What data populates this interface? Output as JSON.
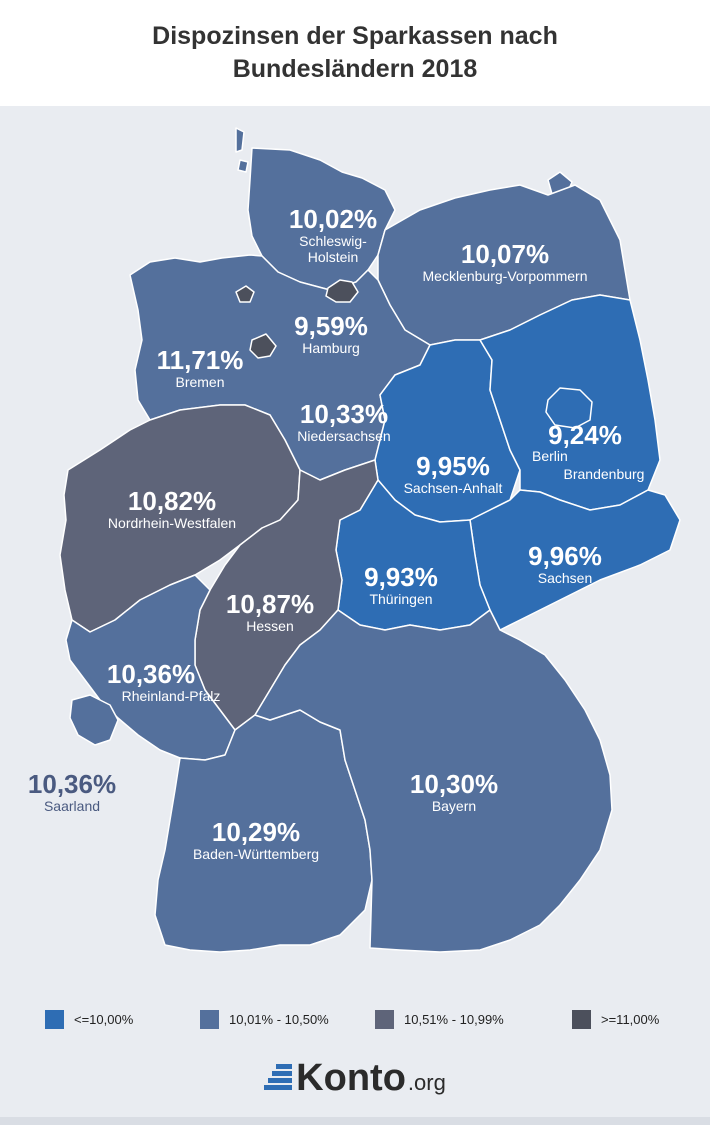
{
  "title": {
    "line1": "Dispozinsen der Sparkassen nach",
    "line2": "Bundesländern 2018"
  },
  "colors": {
    "below_10": "#2e6db4",
    "r10_01_10_50": "#54709c",
    "r10_51_10_99": "#5e6479",
    "above_11": "#4c505c",
    "background": "#e9ecf1",
    "border": "#ffffff"
  },
  "states": {
    "schleswig_holstein": {
      "pct": "10,02%",
      "name": "Schleswig-",
      "name2": "Holstein"
    },
    "mecklenburg": {
      "pct": "10,07%",
      "name": "Mecklenburg-Vorpommern"
    },
    "hamburg": {
      "pct": "9,59%",
      "name": "Hamburg"
    },
    "bremen": {
      "pct": "11,71%",
      "name": "Bremen"
    },
    "niedersachsen": {
      "pct": "10,33%",
      "name": "Niedersachsen"
    },
    "berlin": {
      "pct": "9,24%",
      "name": "Berlin"
    },
    "brandenburg": {
      "name": "Brandenburg"
    },
    "sachsen_anhalt": {
      "pct": "9,95%",
      "name": "Sachsen-Anhalt"
    },
    "nrw": {
      "pct": "10,82%",
      "name": "Nordrhein-Westfalen"
    },
    "sachsen": {
      "pct": "9,96%",
      "name": "Sachsen"
    },
    "hessen": {
      "pct": "10,87%",
      "name": "Hessen"
    },
    "thueringen": {
      "pct": "9,93%",
      "name": "Thüringen"
    },
    "rheinland_pfalz": {
      "pct": "10,36%",
      "name": "Rheinland-Pfalz"
    },
    "saarland": {
      "pct": "10,36%",
      "name": "Saarland"
    },
    "bayern": {
      "pct": "10,30%",
      "name": "Bayern"
    },
    "baden_wuerttemberg": {
      "pct": "10,29%",
      "name": "Baden-Württemberg"
    }
  },
  "legend": [
    {
      "label": "<=10,00%",
      "color": "#2e6db4"
    },
    {
      "label": "10,01% - 10,50%",
      "color": "#54709c"
    },
    {
      "label": "10,51% - 10,99%",
      "color": "#5e6479"
    },
    {
      "label": ">=11,00%",
      "color": "#4c505c"
    }
  ],
  "brand": {
    "main": "Konto",
    "tld": ".org"
  }
}
